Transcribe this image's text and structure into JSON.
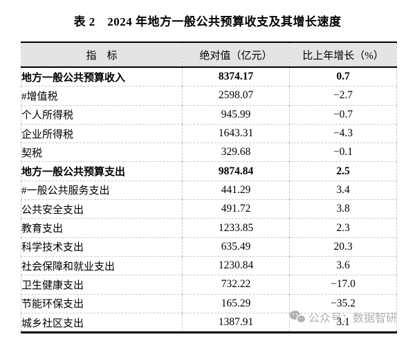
{
  "title": "表 2　2024 年地方一般公共预算收支及其增长速度",
  "table": {
    "headers": [
      "指　标",
      "绝对值（亿元）",
      "比上年增长（%）"
    ],
    "rows": [
      {
        "indicator": "地方一般公共预算收入",
        "value": "8374.17",
        "growth": "0.7",
        "indent": 0,
        "bold": true
      },
      {
        "indicator": "#增值税",
        "value": "2598.07",
        "growth": "−2.7",
        "indent": 1,
        "bold": false
      },
      {
        "indicator": "个人所得税",
        "value": "945.99",
        "growth": "−0.7",
        "indent": 2,
        "bold": false
      },
      {
        "indicator": "企业所得税",
        "value": "1643.31",
        "growth": "−4.3",
        "indent": 2,
        "bold": false
      },
      {
        "indicator": "契税",
        "value": "329.68",
        "growth": "−0.1",
        "indent": 2,
        "bold": false
      },
      {
        "indicator": "地方一般公共预算支出",
        "value": "9874.84",
        "growth": "2.5",
        "indent": 0,
        "bold": true
      },
      {
        "indicator": "#一般公共服务支出",
        "value": "441.29",
        "growth": "3.4",
        "indent": 1,
        "bold": false
      },
      {
        "indicator": "公共安全支出",
        "value": "491.72",
        "growth": "3.8",
        "indent": 2,
        "bold": false
      },
      {
        "indicator": "教育支出",
        "value": "1233.85",
        "growth": "2.3",
        "indent": 2,
        "bold": false
      },
      {
        "indicator": "科学技术支出",
        "value": "635.49",
        "growth": "20.3",
        "indent": 2,
        "bold": false
      },
      {
        "indicator": "社会保障和就业支出",
        "value": "1230.84",
        "growth": "3.6",
        "indent": 2,
        "bold": false
      },
      {
        "indicator": "卫生健康支出",
        "value": "732.22",
        "growth": "−17.0",
        "indent": 2,
        "bold": false
      },
      {
        "indicator": "节能环保支出",
        "value": "165.29",
        "growth": "−35.2",
        "indent": 2,
        "bold": false
      },
      {
        "indicator": "城乡社区支出",
        "value": "1387.91",
        "growth": "3.1",
        "indent": 2,
        "bold": false
      }
    ]
  },
  "watermark": {
    "icon": "wechat-icon",
    "text": "公众号：数据智研"
  },
  "colors": {
    "background": "#ffffff",
    "text": "#000000",
    "table_border": "#000000",
    "grid_line": "#c9c9c9",
    "header_bg": "#e4e4e4",
    "watermark": "#a9a9a9"
  }
}
